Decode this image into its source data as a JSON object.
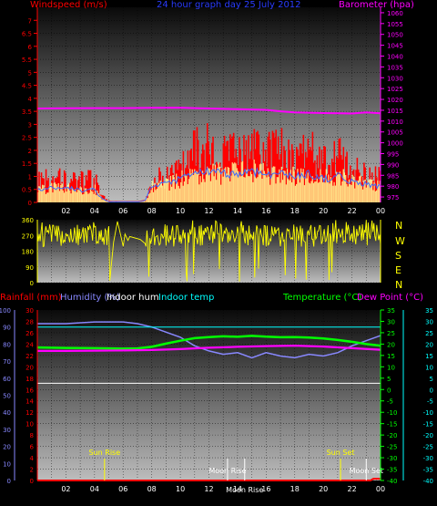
{
  "header": {
    "windspeed": "Windspeed (m/s)",
    "title": "24 hour graph day  25 July 2012",
    "barometer": "Barometer (hpa)"
  },
  "mid_header": {
    "rainfall": "Rainfall (mm)",
    "humidity": "Humidity (%)",
    "indoor_hum": "Indoor hum",
    "indoor_temp": "Indoor temp",
    "temperature": "Temperature (°C)",
    "dew_point": "Dew Point (°C)"
  },
  "compass": [
    "N",
    "W",
    "S",
    "E",
    "N"
  ],
  "colors": {
    "windspeed": "#ff0000",
    "gust": "#ff0000",
    "wind_avg": "#3a6cff",
    "wind_fill": "#ffff99",
    "barometer": "#ff00ff",
    "direction": "#ffff00",
    "rainfall": "#ff0000",
    "humidity": "#8888ff",
    "indoor_hum": "#ffffff",
    "indoor_temp": "#00ffff",
    "temperature": "#00ff00",
    "dew_point": "#ff00ff",
    "sun": "#ffff00",
    "moon": "#ffffff"
  },
  "chart_data": [
    {
      "type": "line",
      "name": "wind_and_pressure",
      "x_ticks": [
        "02",
        "04",
        "06",
        "08",
        "10",
        "12",
        "14",
        "16",
        "18",
        "20",
        "22",
        "00"
      ],
      "y_left_label": "Windspeed (m/s)",
      "y_left_ticks": [
        0,
        0.5,
        1,
        1.5,
        2,
        2.5,
        3,
        3.5,
        4,
        4.5,
        5,
        5.5,
        6,
        6.5,
        7
      ],
      "y_left_range": [
        0,
        7.5
      ],
      "y_right_label": "Barometer (hpa)",
      "y_right_ticks": [
        975,
        980,
        985,
        990,
        995,
        1000,
        1005,
        1010,
        1015,
        1020,
        1025,
        1030,
        1035,
        1040,
        1045,
        1050,
        1055,
        1060
      ],
      "y_right_range": [
        972.5,
        1062.5
      ],
      "barometer": {
        "hours": [
          0,
          2,
          4,
          6,
          8,
          10,
          11,
          12,
          14,
          16,
          17,
          18,
          20,
          22,
          23,
          24
        ],
        "values": [
          1015.8,
          1015.9,
          1016.0,
          1016.0,
          1016.1,
          1016.2,
          1016.0,
          1015.8,
          1015.5,
          1015.2,
          1014.5,
          1014.0,
          1013.7,
          1013.5,
          1014.0,
          1013.6
        ]
      },
      "wind_envelope": {
        "hours": [
          0,
          1,
          2,
          3,
          4,
          4.5,
          5,
          6,
          7,
          7.5,
          8,
          9,
          10,
          11,
          12,
          13,
          14,
          15,
          16,
          17,
          18,
          19,
          20,
          21,
          22,
          23,
          24
        ],
        "gust_max": [
          1.3,
          1.4,
          1.5,
          1.2,
          1.3,
          0.4,
          0.05,
          0.05,
          0.05,
          0.1,
          1.3,
          1.5,
          2.0,
          2.9,
          3.1,
          2.6,
          2.8,
          3.2,
          2.9,
          3.0,
          2.3,
          2.9,
          2.2,
          2.7,
          1.9,
          1.5,
          1.6
        ],
        "avg": [
          0.5,
          0.55,
          0.6,
          0.45,
          0.5,
          0.15,
          0.02,
          0.02,
          0.02,
          0.05,
          0.6,
          0.7,
          0.9,
          1.1,
          1.2,
          1.1,
          1.1,
          1.2,
          1.1,
          1.1,
          1.0,
          1.1,
          0.9,
          1.0,
          0.8,
          0.7,
          0.6
        ]
      }
    },
    {
      "type": "line",
      "name": "wind_direction",
      "y_ticks": [
        0,
        90,
        180,
        270,
        360
      ],
      "y_range": [
        0,
        360
      ],
      "typical_direction_deg": 270,
      "direction_band_deg": [
        200,
        330
      ]
    },
    {
      "type": "line",
      "name": "temperature_humidity",
      "rain_ticks": [
        0,
        2,
        4,
        6,
        8,
        10,
        12,
        14,
        16,
        18,
        20,
        22,
        24,
        26,
        28,
        30
      ],
      "humidity_ticks": [
        0,
        10,
        20,
        30,
        40,
        50,
        60,
        70,
        80,
        90,
        100
      ],
      "temp_ticks": [
        -40,
        -35,
        -30,
        -25,
        -20,
        -15,
        -10,
        -5,
        0,
        5,
        10,
        15,
        20,
        25,
        30,
        35
      ],
      "temp_range": [
        -40,
        35
      ],
      "series": [
        {
          "name": "Humidity (%)",
          "axis": "humidity",
          "hours": [
            0,
            2,
            4,
            6,
            7,
            8,
            9,
            10,
            11,
            12,
            13,
            14,
            15,
            16,
            17,
            18,
            19,
            20,
            21,
            22,
            23,
            24
          ],
          "values": [
            92,
            92,
            93,
            93,
            92,
            90,
            87,
            84,
            79,
            76,
            74,
            75,
            72,
            75,
            73,
            72,
            74,
            73,
            75,
            79,
            82,
            85
          ]
        },
        {
          "name": "Indoor hum",
          "axis": "humidity",
          "hours": [
            0,
            24
          ],
          "values": [
            57,
            57
          ]
        },
        {
          "name": "Indoor temp",
          "axis": "temp",
          "hours": [
            0,
            24
          ],
          "values": [
            27.5,
            27.5
          ]
        },
        {
          "name": "Temperature (°C)",
          "axis": "temp",
          "hours": [
            0,
            2,
            4,
            6,
            7,
            8,
            9,
            10,
            11,
            12,
            13,
            14,
            15,
            16,
            17,
            18,
            19,
            20,
            21,
            22,
            23,
            24
          ],
          "values": [
            18.5,
            18.3,
            18.2,
            18.0,
            18.1,
            18.8,
            20.2,
            21.5,
            22.6,
            23.1,
            23.4,
            23.2,
            23.6,
            23.3,
            23.0,
            23.1,
            22.9,
            22.5,
            21.8,
            21.0,
            20.0,
            19.3
          ]
        },
        {
          "name": "Dew Point (°C)",
          "axis": "temp",
          "hours": [
            0,
            2,
            4,
            6,
            8,
            10,
            12,
            14,
            16,
            18,
            20,
            22,
            24
          ],
          "values": [
            17.0,
            17.0,
            17.1,
            17.2,
            17.4,
            17.8,
            18.4,
            18.8,
            19.1,
            19.3,
            18.9,
            18.2,
            17.5
          ]
        },
        {
          "name": "Rainfall (mm)",
          "axis": "rain",
          "hours": [
            0,
            23.3,
            23.5,
            24
          ],
          "values": [
            0,
            0,
            0.3,
            0.3
          ]
        }
      ],
      "events": [
        {
          "label": "Sun Rise",
          "hour": 4.7,
          "kind": "sun"
        },
        {
          "label": "Moon Rise",
          "hour": 13.3,
          "kind": "moon"
        },
        {
          "label": "Moon Rise",
          "hour": 14.5,
          "kind": "moon"
        },
        {
          "label": "Sun Set",
          "hour": 21.2,
          "kind": "sun"
        },
        {
          "label": "Moon Set",
          "hour": 23.0,
          "kind": "moon"
        }
      ],
      "x_ticks": [
        "02",
        "04",
        "06",
        "08",
        "10",
        "12",
        "14",
        "16",
        "18",
        "20",
        "22",
        "00"
      ]
    }
  ]
}
